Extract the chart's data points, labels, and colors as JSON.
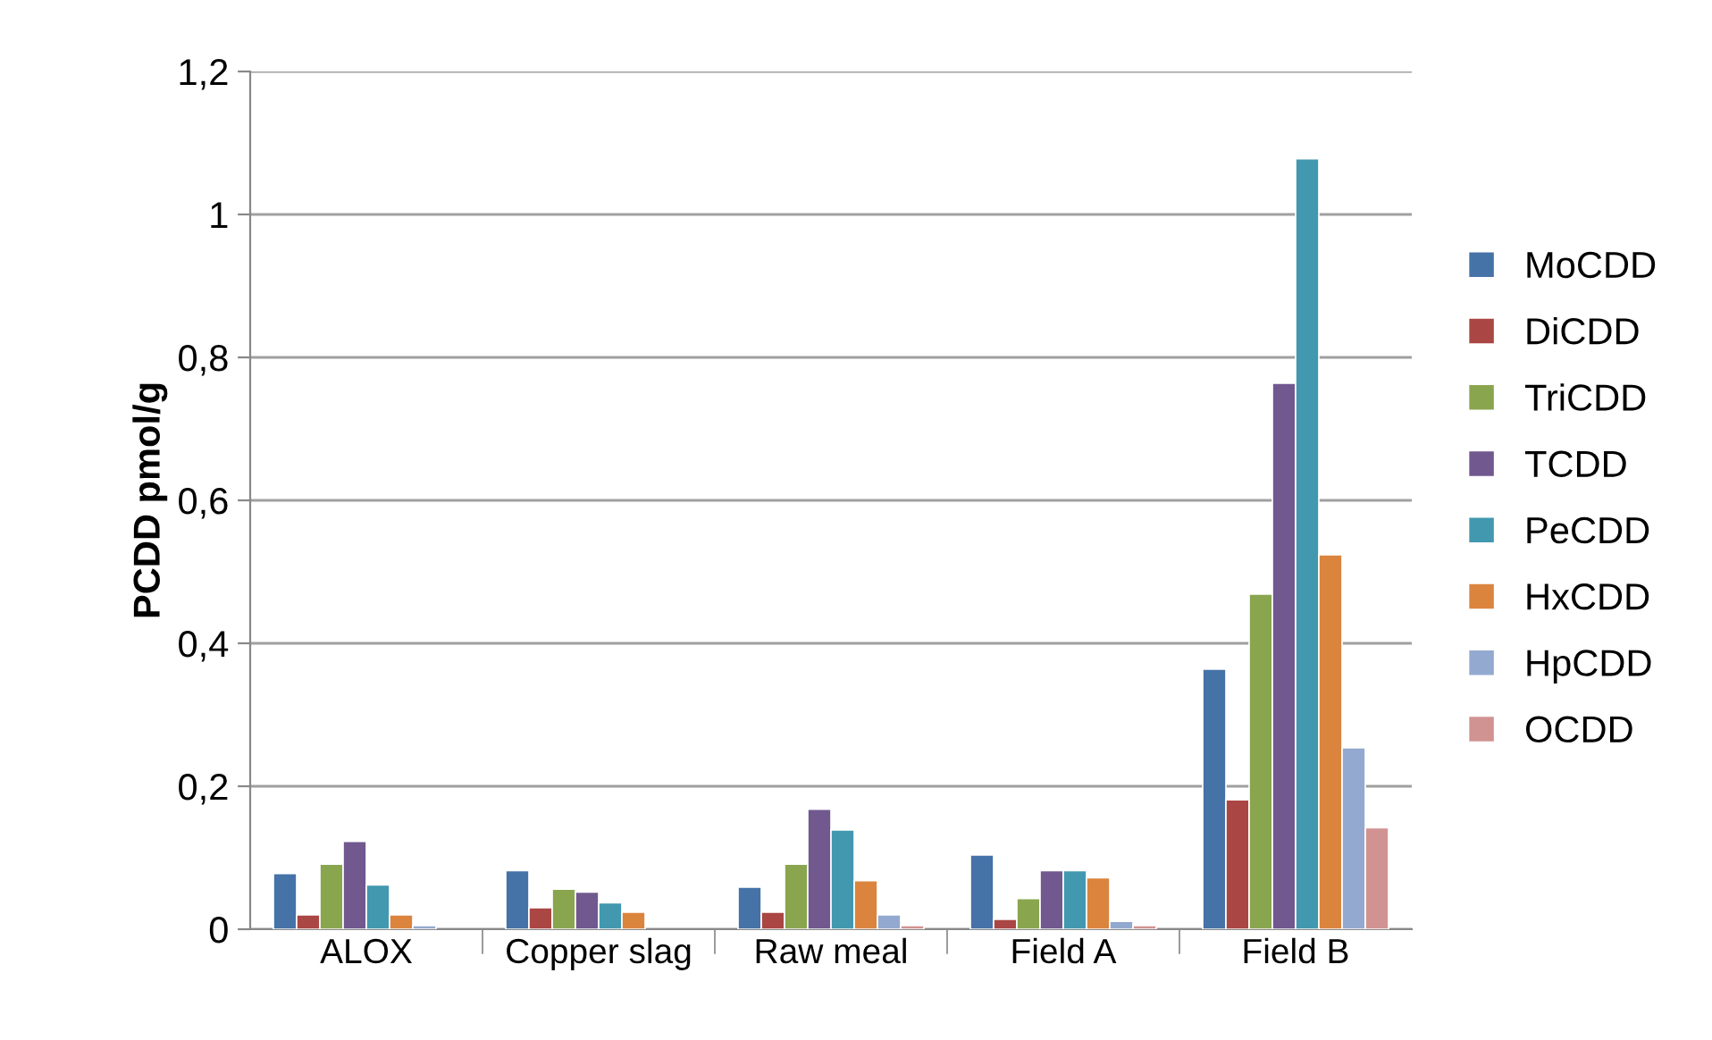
{
  "chart_data": {
    "type": "bar",
    "ylabel": "PCDD pmol/g",
    "categories": [
      "ALOX",
      "Copper slag",
      "Raw meal",
      "Field A",
      "Field B"
    ],
    "ylim": [
      0,
      1.2
    ],
    "yticks": [
      0,
      {
        "value": 0.2,
        "label": "0,2"
      },
      {
        "value": 0.4,
        "label": "0,4"
      },
      {
        "value": 0.6,
        "label": "0,6"
      },
      {
        "value": 0.8,
        "label": "0,8"
      },
      1,
      {
        "value": 1.2,
        "label": "1,2"
      }
    ],
    "grid": "y",
    "legend": "right",
    "series": [
      {
        "name": "MoCDD",
        "color": "#4572a7",
        "values": [
          0.078,
          0.082,
          0.059,
          0.104,
          0.364
        ]
      },
      {
        "name": "DiCDD",
        "color": "#aa4643",
        "values": [
          0.02,
          0.03,
          0.024,
          0.014,
          0.181
        ]
      },
      {
        "name": "TriCDD",
        "color": "#89a54e",
        "values": [
          0.091,
          0.056,
          0.091,
          0.043,
          0.469
        ]
      },
      {
        "name": "TCDD",
        "color": "#71588f",
        "values": [
          0.123,
          0.052,
          0.168,
          0.082,
          0.764
        ]
      },
      {
        "name": "PeCDD",
        "color": "#4198af",
        "values": [
          0.062,
          0.037,
          0.139,
          0.082,
          1.078
        ]
      },
      {
        "name": "HxCDD",
        "color": "#db843d",
        "values": [
          0.02,
          0.024,
          0.068,
          0.072,
          0.524
        ]
      },
      {
        "name": "HpCDD",
        "color": "#93a9cf",
        "values": [
          0.005,
          null,
          0.02,
          0.011,
          0.254
        ]
      },
      {
        "name": "OCDD",
        "color": "#d19392",
        "values": [
          null,
          null,
          0.005,
          0.005,
          0.142
        ]
      }
    ]
  }
}
